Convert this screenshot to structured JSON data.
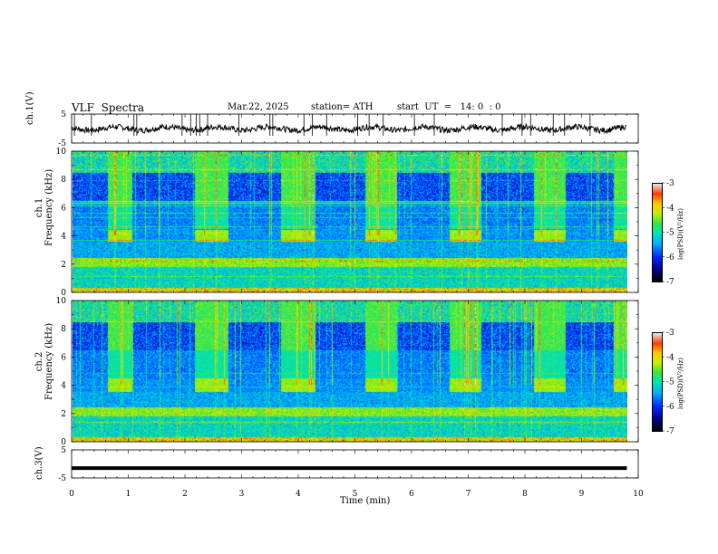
{
  "header": {
    "title": "VLF  Spectra",
    "date": "Mar.22, 2025",
    "station": "station= ATH",
    "start": "start  UT  =   14: 0  : 0"
  },
  "chart_data": [
    {
      "type": "line",
      "name": "ch1-waveform",
      "ylabel": "ch.1(V)",
      "ylim": [
        -5,
        5
      ],
      "yticks": [
        "5",
        "-5"
      ],
      "xlim": [
        0,
        10
      ],
      "description_level_v": 0
    },
    {
      "type": "heatmap",
      "name": "ch1-spectrogram",
      "ylabel": "ch.1\nFrequency  (kHz)",
      "ylabel_top": "ch.1",
      "ylabel_bottom": "Frequency  (kHz)",
      "ylim": [
        0,
        10
      ],
      "yticks": [
        "0",
        "2",
        "4",
        "6",
        "8",
        "10"
      ],
      "xlim": [
        0,
        9.8
      ],
      "colorbar": {
        "label": "log(PSD)(V²/Hz)",
        "ticks": [
          "-3",
          "-4",
          "-5",
          "-6",
          "-7"
        ],
        "range": [
          -7,
          -3
        ]
      },
      "pulse_blocks_min": [
        [
          0.62,
          1.05
        ],
        [
          2.15,
          2.75
        ],
        [
          3.68,
          4.28
        ],
        [
          5.17,
          5.72
        ],
        [
          6.65,
          7.22
        ],
        [
          8.15,
          8.7
        ],
        [
          9.55,
          9.8
        ]
      ],
      "pulse_band_khz": [
        3.6,
        4.4
      ]
    },
    {
      "type": "heatmap",
      "name": "ch2-spectrogram",
      "ylabel_top": "ch.2",
      "ylabel_bottom": "Frequency  (kHz)",
      "ylim": [
        0,
        10
      ],
      "yticks": [
        "0",
        "2",
        "4",
        "6",
        "8",
        "10"
      ],
      "xlim": [
        0,
        9.8
      ],
      "colorbar": {
        "label": "log(PSD)(V²/Hz)",
        "ticks": [
          "-3",
          "-4",
          "-5",
          "-6",
          "-7"
        ],
        "range": [
          -7,
          -3
        ]
      },
      "pulse_blocks_min": [
        [
          0.62,
          1.05
        ],
        [
          2.15,
          2.75
        ],
        [
          3.68,
          4.28
        ],
        [
          5.17,
          5.72
        ],
        [
          6.65,
          7.22
        ],
        [
          8.15,
          8.7
        ],
        [
          9.55,
          9.8
        ]
      ],
      "pulse_band_khz": [
        3.5,
        4.5
      ]
    },
    {
      "type": "line",
      "name": "ch3-waveform",
      "ylabel": "ch.3(V)",
      "ylim": [
        -5,
        5
      ],
      "yticks": [
        "5",
        "-5"
      ],
      "xlim": [
        0,
        10
      ],
      "level_v": -1.5
    }
  ],
  "xaxis": {
    "label": "Time  (min)",
    "ticks": [
      "0",
      "1",
      "2",
      "3",
      "4",
      "5",
      "6",
      "7",
      "8",
      "9",
      "10"
    ]
  }
}
